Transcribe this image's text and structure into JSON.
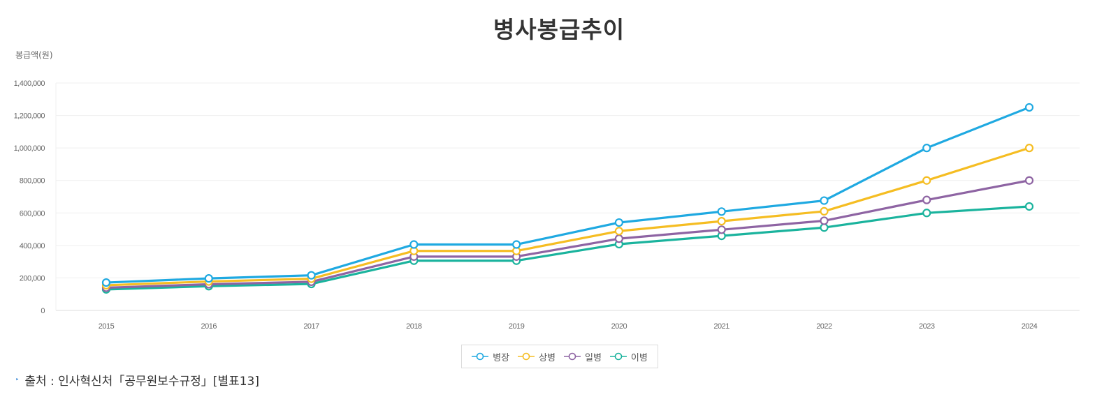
{
  "chart_data": {
    "type": "line",
    "title": "병사봉급추이",
    "ylabel": "봉급액(원)",
    "xlabel": "",
    "categories": [
      "2015",
      "2016",
      "2017",
      "2018",
      "2019",
      "2020",
      "2021",
      "2022",
      "2023",
      "2024"
    ],
    "ylim": [
      0,
      1400000
    ],
    "yticks": [
      0,
      200000,
      400000,
      600000,
      800000,
      1000000,
      1200000,
      1400000
    ],
    "ytick_labels": [
      "0",
      "200,000",
      "400,000",
      "600,000",
      "800,000",
      "1,000,000",
      "1,200,000",
      "1,400,000"
    ],
    "grid": true,
    "legend_position": "bottom-center",
    "series": [
      {
        "name": "병장",
        "color": "#1fa9e1",
        "values": [
          171400,
          197000,
          216000,
          405700,
          405700,
          540900,
          608500,
          676100,
          1000000,
          1250000
        ]
      },
      {
        "name": "상병",
        "color": "#f5bd22",
        "values": [
          154800,
          178000,
          195000,
          366200,
          366200,
          488200,
          549200,
          610200,
          800000,
          1000000
        ]
      },
      {
        "name": "일병",
        "color": "#8e64a3",
        "values": [
          139800,
          161000,
          176400,
          331300,
          331300,
          441700,
          496900,
          552100,
          680000,
          800000
        ]
      },
      {
        "name": "이병",
        "color": "#1ab39d",
        "values": [
          129400,
          149000,
          163000,
          306100,
          306100,
          408100,
          459100,
          510100,
          600000,
          640000
        ]
      }
    ]
  },
  "source": {
    "bullet": "‣",
    "text": "출처 : 인사혁신처「공무원보수규정」[별표13]"
  }
}
